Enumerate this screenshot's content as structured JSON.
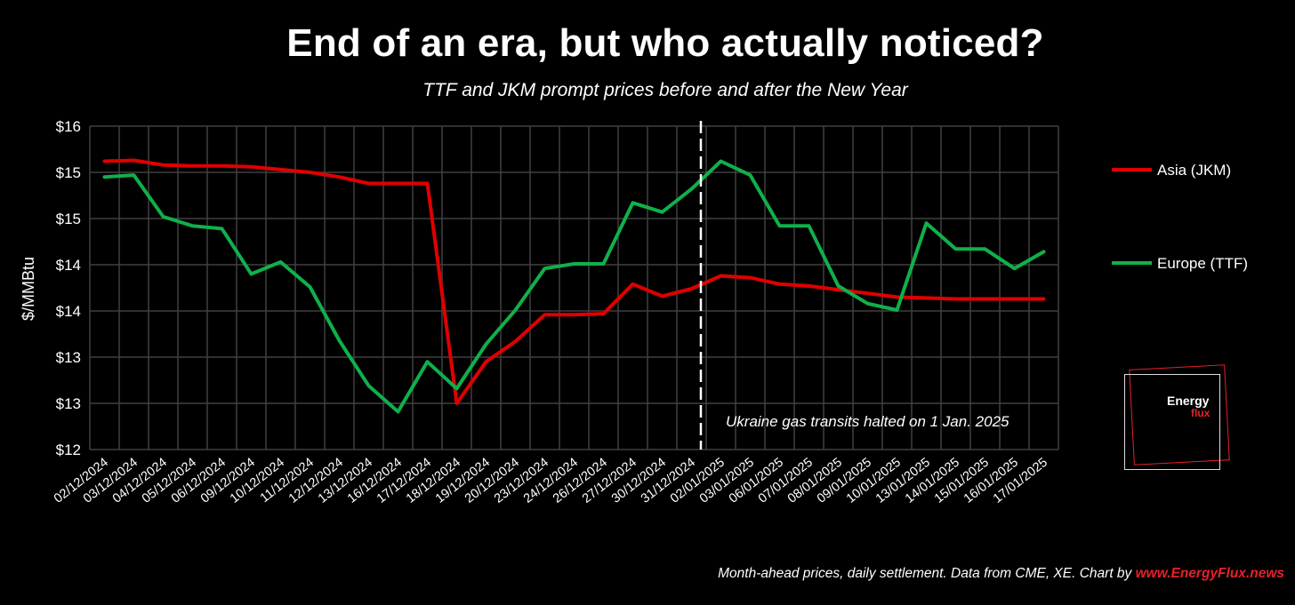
{
  "header": {
    "title": "End of an era, but who actually noticed?",
    "subtitle": "TTF and JKM prompt prices before and after the New Year"
  },
  "footer": {
    "text": "Month-ahead prices, daily settlement. Data from CME, XE. Chart by ",
    "link": "www.EnergyFlux.news"
  },
  "logo": {
    "line1": "Energy",
    "line2": "flux"
  },
  "annotation": {
    "text": "Ukraine gas transits halted on 1 Jan. 2025",
    "after_category": "31/12/2024"
  },
  "colors": {
    "jkm": "#e00000",
    "ttf": "#10b04a",
    "grid": "#404040",
    "background": "#000000"
  },
  "chart_data": {
    "type": "line",
    "title": "End of an era, but who actually noticed?",
    "subtitle": "TTF and JKM prompt prices before and after the New Year",
    "ylabel": "$/MMBtu",
    "xlabel": "",
    "ylim": [
      12,
      15.5
    ],
    "y_tick_labels": [
      "$12",
      "$13",
      "$13",
      "$14",
      "$14",
      "$15",
      "$15",
      "$16"
    ],
    "grid": true,
    "legend_position": "right",
    "categories": [
      "02/12/2024",
      "03/12/2024",
      "04/12/2024",
      "05/12/2024",
      "06/12/2024",
      "09/12/2024",
      "10/12/2024",
      "11/12/2024",
      "12/12/2024",
      "13/12/2024",
      "16/12/2024",
      "17/12/2024",
      "18/12/2024",
      "19/12/2024",
      "20/12/2024",
      "23/12/2024",
      "24/12/2024",
      "26/12/2024",
      "27/12/2024",
      "30/12/2024",
      "31/12/2024",
      "02/01/2025",
      "03/01/2025",
      "06/01/2025",
      "07/01/2025",
      "08/01/2025",
      "09/01/2025",
      "10/01/2025",
      "13/01/2025",
      "14/01/2025",
      "15/01/2025",
      "16/01/2025",
      "17/01/2025"
    ],
    "series": [
      {
        "name": "Asia (JKM)",
        "values": [
          15.12,
          15.13,
          15.08,
          15.07,
          15.07,
          15.06,
          15.03,
          15.0,
          14.95,
          14.88,
          14.88,
          14.88,
          12.5,
          12.95,
          13.17,
          13.46,
          13.46,
          13.47,
          13.79,
          13.66,
          13.74,
          13.88,
          13.86,
          13.79,
          13.77,
          13.73,
          13.69,
          13.65,
          13.64,
          13.63,
          13.63,
          13.63,
          13.63
        ]
      },
      {
        "name": "Europe (TTF)",
        "values": [
          14.95,
          14.97,
          14.52,
          14.42,
          14.39,
          13.9,
          14.03,
          13.76,
          13.18,
          12.69,
          12.41,
          12.95,
          12.66,
          13.14,
          13.51,
          13.96,
          14.01,
          14.01,
          14.67,
          14.57,
          14.82,
          15.12,
          14.97,
          14.42,
          14.42,
          13.77,
          13.58,
          13.51,
          14.45,
          14.17,
          14.17,
          13.96,
          14.14
        ]
      }
    ]
  }
}
